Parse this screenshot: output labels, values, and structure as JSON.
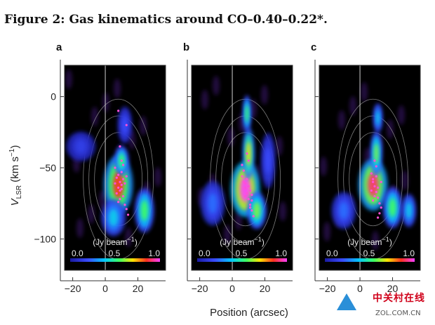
{
  "figure": {
    "title": "Figure 2: Gas kinematics around CO–0.40–0.22*.",
    "watermark_cn": "中关村在线",
    "watermark_en": "ZOL.COM.CN"
  },
  "chart_data": {
    "type": "heatmap",
    "xlabel": "Position (arcsec)",
    "ylabel": "V",
    "ylabel_subscript": "LSR",
    "ylabel_units": "(km s",
    "ylabel_units_sup": "−1",
    "ylabel_units_close": ")",
    "xticks": [
      -20,
      0,
      20
    ],
    "xtick_labels": [
      "−20",
      "0",
      "20"
    ],
    "yticks": [
      0,
      -50,
      -100
    ],
    "ytick_labels": [
      "0",
      "−50",
      "−100"
    ],
    "xlim": [
      -25,
      37
    ],
    "ylim": [
      -122,
      22
    ],
    "colorbar": {
      "label": "(Jy beam",
      "label_sup": "−1",
      "label_close": ")",
      "ticks": [
        "0.0",
        "0.5",
        "1.0"
      ],
      "range": [
        0.0,
        1.0
      ]
    },
    "panels": [
      {
        "letter": "a",
        "blobs": [
          {
            "x": 8,
            "y": -62,
            "sx": 6,
            "sy": 16,
            "v": 0.85
          },
          {
            "x": 10,
            "y": -45,
            "sx": 3,
            "sy": 8,
            "v": 0.55
          },
          {
            "x": 24,
            "y": -80,
            "sx": 4,
            "sy": 12,
            "v": 0.55
          },
          {
            "x": 5,
            "y": -85,
            "sx": 5,
            "sy": 10,
            "v": 0.4
          },
          {
            "x": 12,
            "y": -20,
            "sx": 3,
            "sy": 10,
            "v": 0.2
          },
          {
            "x": -15,
            "y": -35,
            "sx": 6,
            "sy": 8,
            "v": 0.15
          }
        ],
        "markers": [
          [
            8,
            -55
          ],
          [
            9,
            -60
          ],
          [
            10,
            -65
          ],
          [
            7,
            -68
          ],
          [
            11,
            -58
          ],
          [
            9,
            -72
          ],
          [
            12,
            -76
          ],
          [
            6,
            -50
          ],
          [
            10,
            -62
          ],
          [
            8,
            -64
          ],
          [
            11,
            -70
          ],
          [
            13,
            -79
          ],
          [
            7,
            -57
          ],
          [
            9,
            -66
          ],
          [
            12,
            -61
          ],
          [
            10,
            -53
          ],
          [
            14,
            -83
          ],
          [
            8,
            -74
          ],
          [
            6,
            -61
          ],
          [
            11,
            -48
          ],
          [
            13,
            -56
          ],
          [
            10,
            -45
          ],
          [
            9,
            -35
          ],
          [
            8,
            -10
          ],
          [
            13,
            -20
          ]
        ]
      },
      {
        "letter": "b",
        "blobs": [
          {
            "x": 8,
            "y": -65,
            "sx": 6,
            "sy": 15,
            "v": 1.0
          },
          {
            "x": 10,
            "y": -40,
            "sx": 2.5,
            "sy": 14,
            "v": 0.7
          },
          {
            "x": 9,
            "y": -12,
            "sx": 1.8,
            "sy": 10,
            "v": 0.55
          },
          {
            "x": 15,
            "y": -80,
            "sx": 4,
            "sy": 10,
            "v": 0.6
          },
          {
            "x": -12,
            "y": -75,
            "sx": 5,
            "sy": 12,
            "v": 0.25
          },
          {
            "x": 22,
            "y": -45,
            "sx": 3,
            "sy": 15,
            "v": 0.2
          }
        ],
        "markers": [
          [
            6,
            -56
          ],
          [
            7,
            -60
          ],
          [
            8,
            -64
          ],
          [
            9,
            -68
          ],
          [
            10,
            -72
          ],
          [
            11,
            -76
          ],
          [
            12,
            -80
          ],
          [
            7,
            -52
          ],
          [
            9,
            -58
          ],
          [
            10,
            -63
          ],
          [
            8,
            -70
          ],
          [
            11,
            -66
          ],
          [
            12,
            -73
          ],
          [
            13,
            -84
          ],
          [
            6,
            -48
          ],
          [
            10,
            -45
          ],
          [
            9,
            -40
          ],
          [
            11,
            -78
          ],
          [
            8,
            -61
          ],
          [
            12,
            -69
          ]
        ]
      },
      {
        "letter": "c",
        "blobs": [
          {
            "x": 8,
            "y": -62,
            "sx": 6,
            "sy": 14,
            "v": 0.9
          },
          {
            "x": 10,
            "y": -40,
            "sx": 2.5,
            "sy": 12,
            "v": 0.6
          },
          {
            "x": 11,
            "y": -15,
            "sx": 2,
            "sy": 8,
            "v": 0.4
          },
          {
            "x": 20,
            "y": -78,
            "sx": 4,
            "sy": 11,
            "v": 0.55
          },
          {
            "x": 30,
            "y": -80,
            "sx": 3,
            "sy": 9,
            "v": 0.4
          },
          {
            "x": -10,
            "y": -80,
            "sx": 5,
            "sy": 10,
            "v": 0.25
          }
        ],
        "markers": [
          [
            7,
            -54
          ],
          [
            8,
            -58
          ],
          [
            9,
            -63
          ],
          [
            10,
            -67
          ],
          [
            11,
            -71
          ],
          [
            12,
            -75
          ],
          [
            8,
            -60
          ],
          [
            10,
            -56
          ],
          [
            11,
            -64
          ],
          [
            9,
            -70
          ],
          [
            13,
            -78
          ],
          [
            7,
            -66
          ],
          [
            12,
            -82
          ],
          [
            10,
            -49
          ],
          [
            9,
            -45
          ],
          [
            13,
            -60
          ],
          [
            11,
            -85
          ],
          [
            8,
            -73
          ]
        ]
      }
    ]
  }
}
